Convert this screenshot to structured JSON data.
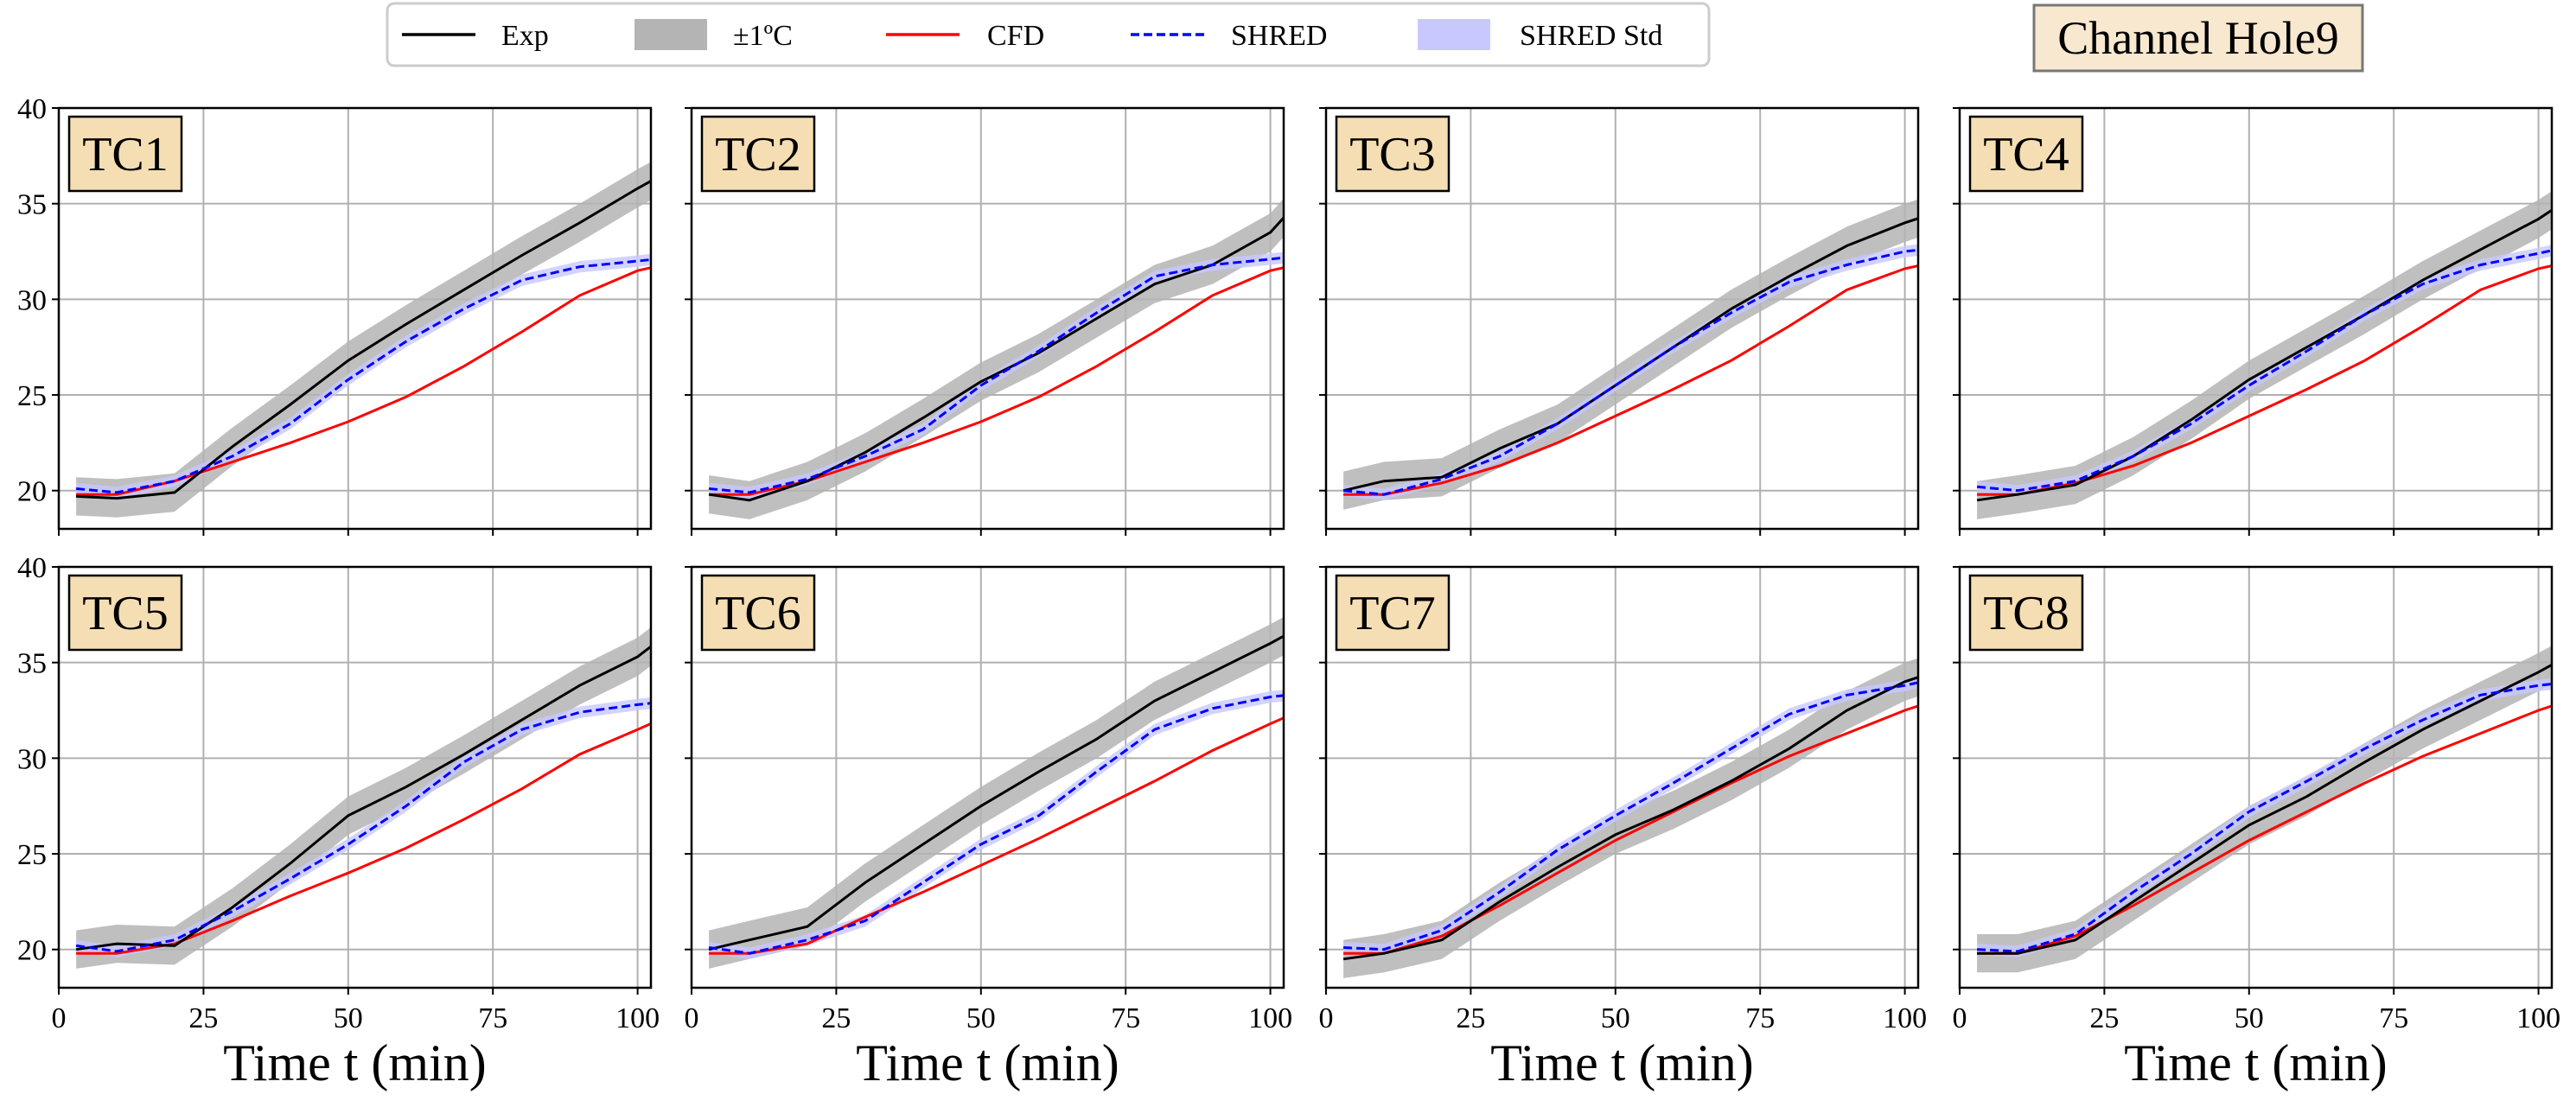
{
  "colors": {
    "exp": "#000000",
    "band": "#b4b4b4",
    "cfd": "#ff0000",
    "shred": "#0000ff",
    "shred_std": "#c8c8ff",
    "label_box": "#f5deb3",
    "title_box": "#f8e8cf",
    "grid": "#b0b0b0"
  },
  "title": "Channel Hole9",
  "legend": {
    "placement": "top-center",
    "items": [
      {
        "label": "Exp",
        "kind": "line",
        "color": "#000000"
      },
      {
        "label": "±1ºC",
        "kind": "patch",
        "color": "#b4b4b4"
      },
      {
        "label": "CFD",
        "kind": "line",
        "color": "#ff0000"
      },
      {
        "label": "SHRED",
        "kind": "dashed",
        "color": "#0000ff"
      },
      {
        "label": "SHRED Std",
        "kind": "patch",
        "color": "#c8c8ff"
      }
    ]
  },
  "chart_data": {
    "type": "line",
    "layout": "2x4 grid of subplots, shared axes",
    "xlabel": "Time t (min)",
    "ylabel": "",
    "xlim": [
      0,
      102.3
    ],
    "ylim": [
      18,
      40
    ],
    "xticks": [
      "0",
      "25",
      "50",
      "75",
      "100"
    ],
    "yticks": [
      "20",
      "25",
      "30",
      "35",
      "40"
    ],
    "grid": true,
    "band_halfwidth_c": 1,
    "t": [
      3,
      10,
      20,
      30,
      40,
      50,
      60,
      70,
      80,
      90,
      100,
      103
    ],
    "panels": [
      {
        "label": "TC1",
        "exp": [
          19.7,
          19.6,
          19.9,
          22.3,
          24.5,
          26.8,
          28.7,
          30.5,
          32.3,
          34.0,
          35.8,
          36.3
        ],
        "cfd": [
          19.8,
          19.8,
          20.5,
          21.5,
          22.5,
          23.6,
          24.9,
          26.5,
          28.3,
          30.2,
          31.5,
          31.7
        ],
        "shred": [
          20.1,
          19.9,
          20.5,
          21.8,
          23.5,
          25.8,
          27.8,
          29.5,
          31.0,
          31.7,
          32.0,
          32.1
        ]
      },
      {
        "label": "TC2",
        "exp": [
          19.8,
          19.5,
          20.5,
          22.0,
          23.8,
          25.7,
          27.2,
          29.0,
          30.8,
          31.8,
          33.5,
          34.5
        ],
        "cfd": [
          19.8,
          19.8,
          20.5,
          21.5,
          22.5,
          23.6,
          24.9,
          26.5,
          28.3,
          30.2,
          31.5,
          31.7
        ],
        "shred": [
          20.1,
          19.9,
          20.6,
          21.8,
          23.2,
          25.5,
          27.3,
          29.3,
          31.2,
          31.8,
          32.1,
          32.2
        ]
      },
      {
        "label": "TC3",
        "exp": [
          20.0,
          20.5,
          20.7,
          22.2,
          23.5,
          25.5,
          27.5,
          29.5,
          31.2,
          32.8,
          34.0,
          34.3
        ],
        "cfd": [
          19.8,
          19.8,
          20.4,
          21.3,
          22.5,
          23.9,
          25.3,
          26.8,
          28.6,
          30.5,
          31.6,
          31.8
        ],
        "shred": [
          20.0,
          19.8,
          20.6,
          21.8,
          23.5,
          25.5,
          27.5,
          29.3,
          30.9,
          31.8,
          32.5,
          32.6
        ]
      },
      {
        "label": "TC4",
        "exp": [
          19.5,
          19.8,
          20.3,
          21.8,
          23.7,
          25.8,
          27.5,
          29.2,
          31.0,
          32.6,
          34.2,
          34.8
        ],
        "cfd": [
          19.8,
          19.8,
          20.4,
          21.3,
          22.5,
          23.9,
          25.3,
          26.8,
          28.6,
          30.5,
          31.6,
          31.8
        ],
        "shred": [
          20.2,
          20.0,
          20.5,
          21.8,
          23.5,
          25.5,
          27.3,
          29.2,
          30.8,
          31.8,
          32.4,
          32.6
        ]
      },
      {
        "label": "TC5",
        "exp": [
          20.0,
          20.3,
          20.2,
          22.2,
          24.5,
          27.0,
          28.5,
          30.2,
          32.0,
          33.8,
          35.3,
          36.0
        ],
        "cfd": [
          19.8,
          19.8,
          20.3,
          21.5,
          22.8,
          24.0,
          25.3,
          26.8,
          28.4,
          30.2,
          31.5,
          31.9
        ],
        "shred": [
          20.2,
          19.9,
          20.5,
          22.0,
          23.7,
          25.5,
          27.5,
          29.8,
          31.5,
          32.4,
          32.8,
          32.9
        ]
      },
      {
        "label": "TC6",
        "exp": [
          20.0,
          20.5,
          21.2,
          23.5,
          25.5,
          27.5,
          29.3,
          31.0,
          33.0,
          34.5,
          36.0,
          36.5
        ],
        "cfd": [
          19.8,
          19.8,
          20.3,
          21.7,
          23.0,
          24.4,
          25.8,
          27.3,
          28.8,
          30.4,
          31.8,
          32.2
        ],
        "shred": [
          20.1,
          19.8,
          20.5,
          21.5,
          23.5,
          25.5,
          27.0,
          29.3,
          31.5,
          32.6,
          33.2,
          33.3
        ]
      },
      {
        "label": "TC7",
        "exp": [
          19.5,
          19.8,
          20.5,
          22.5,
          24.3,
          26.0,
          27.3,
          28.8,
          30.5,
          32.5,
          34.0,
          34.3
        ],
        "cfd": [
          19.8,
          19.8,
          20.7,
          22.3,
          24.0,
          25.7,
          27.2,
          28.7,
          30.1,
          31.3,
          32.5,
          32.8
        ],
        "shred": [
          20.1,
          20.0,
          21.0,
          23.0,
          25.2,
          27.0,
          28.7,
          30.5,
          32.3,
          33.3,
          33.8,
          34.0
        ]
      },
      {
        "label": "TC8",
        "exp": [
          19.8,
          19.8,
          20.5,
          22.5,
          24.5,
          26.5,
          28.0,
          29.8,
          31.5,
          33.0,
          34.5,
          35.0
        ],
        "cfd": [
          19.8,
          19.8,
          20.7,
          22.3,
          24.0,
          25.7,
          27.2,
          28.7,
          30.1,
          31.3,
          32.5,
          32.8
        ],
        "shred": [
          20.0,
          19.9,
          20.8,
          23.0,
          25.0,
          27.2,
          28.8,
          30.5,
          32.0,
          33.3,
          33.8,
          33.9
        ]
      }
    ]
  }
}
